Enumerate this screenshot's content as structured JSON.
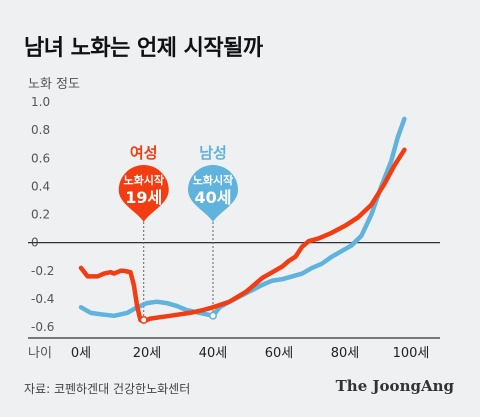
{
  "title": "남녀 노화는 언제 시작될까",
  "source": "자료: 코펜하겐대 건강한노화센터",
  "brand": "The JoongAng",
  "colors": {
    "female": "#f23d12",
    "male": "#5fb3dc",
    "axis": "#333333",
    "guide": "#888888"
  },
  "chart_data": {
    "type": "line",
    "ylabel": "노화 정도",
    "xlabel": "나이",
    "xlim": [
      0,
      100
    ],
    "ylim": [
      -0.6,
      1.0
    ],
    "yticks": [
      {
        "value": 1.0,
        "label": "1.0"
      },
      {
        "value": 0.8,
        "label": "0.8"
      },
      {
        "value": 0.6,
        "label": "0.6"
      },
      {
        "value": 0.4,
        "label": "0.4"
      },
      {
        "value": 0.2,
        "label": "0.2"
      },
      {
        "value": 0,
        "label": "0"
      },
      {
        "value": -0.2,
        "label": "-0.2"
      },
      {
        "value": -0.4,
        "label": "-0.4"
      },
      {
        "value": -0.6,
        "label": "-0.6"
      }
    ],
    "xticks": [
      {
        "value": 0,
        "label": "0세"
      },
      {
        "value": 20,
        "label": "20세"
      },
      {
        "value": 40,
        "label": "40세"
      },
      {
        "value": 60,
        "label": "60세"
      },
      {
        "value": 80,
        "label": "80세"
      },
      {
        "value": 100,
        "label": "100세"
      }
    ],
    "series": [
      {
        "name": "여성",
        "color": "#f23d12",
        "points": [
          [
            0,
            -0.18
          ],
          [
            2,
            -0.24
          ],
          [
            5,
            -0.24
          ],
          [
            7,
            -0.22
          ],
          [
            9,
            -0.21
          ],
          [
            10,
            -0.22
          ],
          [
            12,
            -0.2
          ],
          [
            13,
            -0.2
          ],
          [
            15,
            -0.21
          ],
          [
            16,
            -0.3
          ],
          [
            17,
            -0.45
          ],
          [
            18,
            -0.55
          ],
          [
            19,
            -0.56
          ],
          [
            21,
            -0.54
          ],
          [
            24,
            -0.53
          ],
          [
            27,
            -0.52
          ],
          [
            30,
            -0.51
          ],
          [
            33,
            -0.5
          ],
          [
            37,
            -0.48
          ],
          [
            40,
            -0.46
          ],
          [
            45,
            -0.42
          ],
          [
            50,
            -0.35
          ],
          [
            55,
            -0.25
          ],
          [
            58,
            -0.21
          ],
          [
            61,
            -0.17
          ],
          [
            63,
            -0.13
          ],
          [
            65,
            -0.1
          ],
          [
            67,
            -0.03
          ],
          [
            69,
            0.01
          ],
          [
            72,
            0.03
          ],
          [
            76,
            0.07
          ],
          [
            80,
            0.12
          ],
          [
            84,
            0.18
          ],
          [
            88,
            0.27
          ],
          [
            92,
            0.42
          ],
          [
            95,
            0.55
          ],
          [
            98,
            0.66
          ]
        ]
      },
      {
        "name": "남성",
        "color": "#5fb3dc",
        "points": [
          [
            0,
            -0.46
          ],
          [
            3,
            -0.5
          ],
          [
            6,
            -0.51
          ],
          [
            10,
            -0.52
          ],
          [
            14,
            -0.5
          ],
          [
            17,
            -0.46
          ],
          [
            20,
            -0.43
          ],
          [
            23,
            -0.42
          ],
          [
            26,
            -0.43
          ],
          [
            29,
            -0.45
          ],
          [
            32,
            -0.48
          ],
          [
            36,
            -0.5
          ],
          [
            38,
            -0.51
          ],
          [
            40,
            -0.52
          ],
          [
            42,
            -0.46
          ],
          [
            45,
            -0.42
          ],
          [
            50,
            -0.36
          ],
          [
            55,
            -0.3
          ],
          [
            58,
            -0.27
          ],
          [
            61,
            -0.26
          ],
          [
            64,
            -0.24
          ],
          [
            67,
            -0.22
          ],
          [
            70,
            -0.18
          ],
          [
            73,
            -0.15
          ],
          [
            76,
            -0.1
          ],
          [
            79,
            -0.06
          ],
          [
            82,
            -0.02
          ],
          [
            85,
            0.05
          ],
          [
            88,
            0.2
          ],
          [
            91,
            0.4
          ],
          [
            94,
            0.58
          ],
          [
            96,
            0.75
          ],
          [
            98,
            0.88
          ]
        ]
      }
    ],
    "markers": [
      {
        "series": "여성",
        "age": 19,
        "value": -0.55,
        "label_top": "여성",
        "label_mid": "노화시작",
        "label_num": "19세"
      },
      {
        "series": "남성",
        "age": 40,
        "value": -0.52,
        "label_top": "남성",
        "label_mid": "노화시작",
        "label_num": "40세"
      }
    ]
  }
}
